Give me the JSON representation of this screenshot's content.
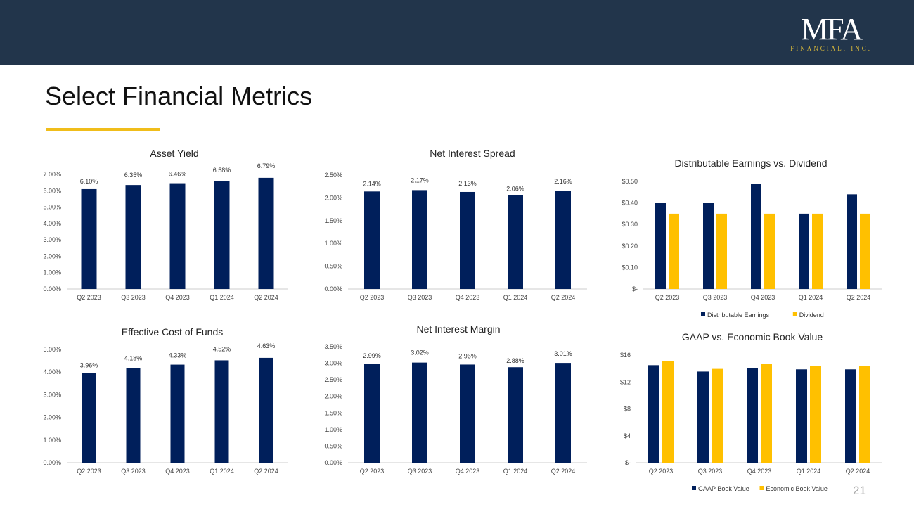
{
  "header": {
    "logo_main": "MFA",
    "logo_sub": "FINANCIAL, INC."
  },
  "page": {
    "title": "Select Financial Metrics",
    "page_number": "21"
  },
  "colors": {
    "navy": "#001f5b",
    "gold": "#ffc000",
    "header": "#22354b",
    "accent": "#f0bd1a"
  },
  "chart_data": [
    {
      "type": "bar",
      "title": "Asset Yield",
      "categories": [
        "Q2 2023",
        "Q3 2023",
        "Q4 2023",
        "Q1 2024",
        "Q2 2024"
      ],
      "series": [
        {
          "values": [
            6.1,
            6.35,
            6.46,
            6.58,
            6.79
          ],
          "color": "#001f5b",
          "labels": [
            "6.10%",
            "6.35%",
            "6.46%",
            "6.58%",
            "6.79%"
          ]
        }
      ],
      "yticks": [
        "0.00%",
        "1.00%",
        "2.00%",
        "3.00%",
        "4.00%",
        "5.00%",
        "6.00%",
        "7.00%"
      ],
      "ylim": [
        0,
        7
      ]
    },
    {
      "type": "bar",
      "title": "Net Interest Spread",
      "categories": [
        "Q2 2023",
        "Q3 2023",
        "Q4 2023",
        "Q1 2024",
        "Q2 2024"
      ],
      "series": [
        {
          "values": [
            2.14,
            2.17,
            2.13,
            2.06,
            2.16
          ],
          "color": "#001f5b",
          "labels": [
            "2.14%",
            "2.17%",
            "2.13%",
            "2.06%",
            "2.16%"
          ]
        }
      ],
      "yticks": [
        "0.00%",
        "0.50%",
        "1.00%",
        "1.50%",
        "2.00%",
        "2.50%"
      ],
      "ylim": [
        0,
        2.5
      ]
    },
    {
      "type": "bar",
      "title": "Distributable Earnings vs. Dividend",
      "categories": [
        "Q2 2023",
        "Q3 2023",
        "Q4 2023",
        "Q1 2024",
        "Q2 2024"
      ],
      "series": [
        {
          "name": "Distributable Earnings",
          "values": [
            0.4,
            0.4,
            0.49,
            0.35,
            0.44
          ],
          "color": "#001f5b"
        },
        {
          "name": "Dividend",
          "values": [
            0.35,
            0.35,
            0.35,
            0.35,
            0.35
          ],
          "color": "#ffc000"
        }
      ],
      "yticks": [
        "$-",
        "$0.10",
        "$0.20",
        "$0.30",
        "$0.40",
        "$0.50"
      ],
      "ylim": [
        0,
        0.5
      ],
      "legend": "bottom"
    },
    {
      "type": "bar",
      "title": "Effective  Cost of Funds",
      "categories": [
        "Q2 2023",
        "Q3 2023",
        "Q4 2023",
        "Q1 2024",
        "Q2 2024"
      ],
      "series": [
        {
          "values": [
            3.96,
            4.18,
            4.33,
            4.52,
            4.63
          ],
          "color": "#001f5b",
          "labels": [
            "3.96%",
            "4.18%",
            "4.33%",
            "4.52%",
            "4.63%"
          ]
        }
      ],
      "yticks": [
        "0.00%",
        "1.00%",
        "2.00%",
        "3.00%",
        "4.00%",
        "5.00%"
      ],
      "ylim": [
        0,
        5
      ]
    },
    {
      "type": "bar",
      "title": "Net Interest Margin",
      "categories": [
        "Q2 2023",
        "Q3 2023",
        "Q4 2023",
        "Q1 2024",
        "Q2 2024"
      ],
      "series": [
        {
          "values": [
            2.99,
            3.02,
            2.96,
            2.88,
            3.01
          ],
          "color": "#001f5b",
          "labels": [
            "2.99%",
            "3.02%",
            "2.96%",
            "2.88%",
            "3.01%"
          ]
        }
      ],
      "yticks": [
        "0.00%",
        "0.50%",
        "1.00%",
        "1.50%",
        "2.00%",
        "2.50%",
        "3.00%",
        "3.50%"
      ],
      "ylim": [
        0,
        3.5
      ]
    },
    {
      "type": "bar",
      "title": "GAAP vs. Economic Book Value",
      "categories": [
        "Q2 2023",
        "Q3 2023",
        "Q4 2023",
        "Q1 2024",
        "Q2 2024"
      ],
      "series": [
        {
          "name": "GAAP Book Value",
          "values": [
            14.5,
            13.55,
            14.06,
            13.88,
            13.88
          ],
          "color": "#001f5b"
        },
        {
          "name": "Economic Book Value",
          "values": [
            15.15,
            13.95,
            14.65,
            14.43,
            14.43
          ],
          "color": "#ffc000"
        }
      ],
      "yticks": [
        "$-",
        "$4",
        "$8",
        "$12",
        "$16"
      ],
      "ylim": [
        0,
        16
      ],
      "legend": "bottom"
    }
  ]
}
